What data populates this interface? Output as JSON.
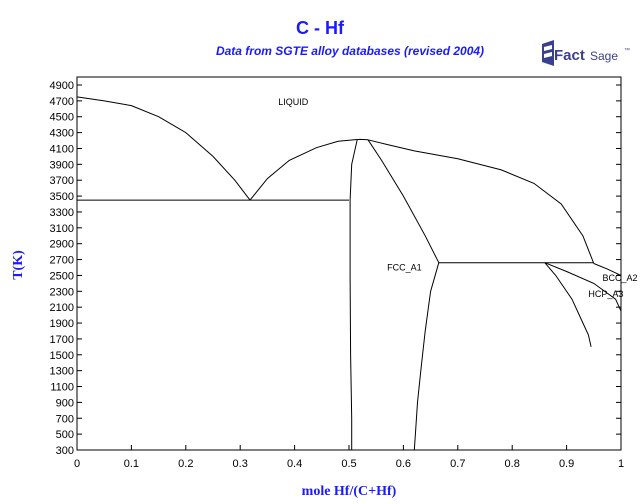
{
  "title": "C - Hf",
  "subtitle": "Data from SGTE alloy databases (revised 2004)",
  "logo_text": "FactSage",
  "colors": {
    "title": "#1a1aff",
    "axis_label": "#1a1aff",
    "line": "#000000"
  },
  "chart_data": {
    "type": "line",
    "title": "C - Hf",
    "subtitle": "Data from SGTE alloy databases (revised 2004)",
    "xlabel": "mole Hf/(C+Hf)",
    "ylabel": "T(K)",
    "xlim": [
      0,
      1
    ],
    "ylim": [
      300,
      5000
    ],
    "xticks": [
      0,
      0.1,
      0.2,
      0.3,
      0.4,
      0.5,
      0.6,
      0.7,
      0.8,
      0.9,
      1
    ],
    "xtick_labels": [
      "0",
      "0.1",
      "0.2",
      "0.3",
      "0.4",
      "0.5",
      "0.6",
      "0.7",
      "0.8",
      "0.9",
      "1"
    ],
    "yticks": [
      300,
      500,
      700,
      900,
      1100,
      1300,
      1500,
      1700,
      1900,
      2100,
      2300,
      2500,
      2700,
      2900,
      3100,
      3300,
      3500,
      3700,
      3900,
      4100,
      4300,
      4500,
      4700,
      4900
    ],
    "grid": false,
    "legend": "none",
    "series": [
      {
        "x": [
          0,
          0.05,
          0.1,
          0.15,
          0.2,
          0.25,
          0.29,
          0.318
        ],
        "y": [
          4750,
          4700,
          4640,
          4500,
          4300,
          4000,
          3700,
          3450
        ]
      },
      {
        "x": [
          0.318,
          0.35,
          0.39,
          0.44,
          0.48,
          0.51,
          0.52,
          0.535
        ],
        "y": [
          3450,
          3720,
          3950,
          4110,
          4190,
          4210,
          4215,
          4210
        ]
      },
      {
        "x": [
          0.535,
          0.57,
          0.62,
          0.7,
          0.78,
          0.84,
          0.89,
          0.93,
          0.95
        ],
        "y": [
          4210,
          4150,
          4070,
          3970,
          3830,
          3660,
          3400,
          3000,
          2650
        ]
      },
      {
        "x": [
          0.535,
          0.56,
          0.6,
          0.64,
          0.665
        ],
        "y": [
          4210,
          3950,
          3500,
          3000,
          2660
        ]
      },
      {
        "x": [
          0,
          0.5
        ],
        "y": [
          3450,
          3450
        ]
      },
      {
        "x": [
          0.515,
          0.505,
          0.502,
          0.502,
          0.503,
          0.505,
          0.505
        ],
        "y": [
          4210,
          3900,
          3450,
          2500,
          1500,
          700,
          300
        ]
      },
      {
        "x": [
          0.665,
          0.65,
          0.64,
          0.632,
          0.626,
          0.622,
          0.62
        ],
        "y": [
          2660,
          2300,
          1800,
          1300,
          900,
          500,
          300
        ]
      },
      {
        "x": [
          0.665,
          0.95
        ],
        "y": [
          2660,
          2660
        ]
      },
      {
        "x": [
          0.86,
          0.88,
          0.91,
          0.93,
          0.94,
          0.945
        ],
        "y": [
          2660,
          2500,
          2200,
          1900,
          1750,
          1600
        ]
      },
      {
        "x": [
          0.86,
          0.9,
          0.95,
          0.99,
          1
        ],
        "y": [
          2660,
          2550,
          2400,
          2200,
          2050
        ]
      },
      {
        "x": [
          0.95,
          0.975,
          1
        ],
        "y": [
          2650,
          2580,
          2500
        ]
      }
    ],
    "annotations": [
      {
        "text": "LIQUID",
        "x": 0.37,
        "y": 4650
      },
      {
        "text": "FCC_A1",
        "x": 0.57,
        "y": 2560
      },
      {
        "text": "BCC_A2",
        "x": 0.966,
        "y": 2430
      },
      {
        "text": "HCP_A3",
        "x": 0.94,
        "y": 2230
      }
    ]
  }
}
